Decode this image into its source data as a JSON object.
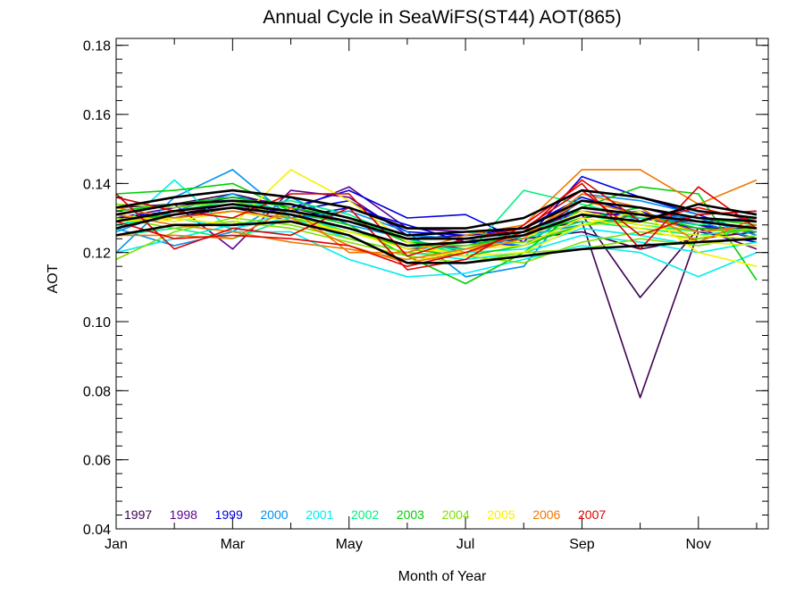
{
  "chart_data": {
    "type": "line",
    "title": "Annual Cycle in SeaWiFS(ST44) AOT(865)",
    "xlabel": "Month of Year",
    "ylabel": "AOT",
    "xlim": [
      1,
      12.2
    ],
    "ylim": [
      0.04,
      0.182
    ],
    "x_ticks": [
      {
        "value": 1,
        "label": "Jan"
      },
      {
        "value": 3,
        "label": "Mar"
      },
      {
        "value": 5,
        "label": "May"
      },
      {
        "value": 7,
        "label": "Jul"
      },
      {
        "value": 9,
        "label": "Sep"
      },
      {
        "value": 11,
        "label": "Nov"
      }
    ],
    "y_ticks": [
      {
        "value": 0.04,
        "label": "0.04"
      },
      {
        "value": 0.06,
        "label": "0.06"
      },
      {
        "value": 0.08,
        "label": "0.08"
      },
      {
        "value": 0.1,
        "label": "0.10"
      },
      {
        "value": 0.12,
        "label": "0.12"
      },
      {
        "value": 0.14,
        "label": "0.14"
      },
      {
        "value": 0.16,
        "label": "0.16"
      },
      {
        "value": 0.18,
        "label": "0.18"
      }
    ],
    "x": [
      1,
      2,
      3,
      4,
      5,
      6,
      7,
      8,
      9,
      10,
      11,
      12
    ],
    "legend_position": "bottom-left",
    "series": [
      {
        "name": "1997",
        "color": "#3d0050",
        "lines": [
          [
            0.13,
            0.131,
            0.134,
            0.131,
            0.127,
            0.121,
            0.122,
            0.124,
            0.126,
            0.121,
            0.124,
            0.126
          ],
          [
            0.133,
            0.134,
            0.137,
            0.133,
            0.129,
            0.124,
            0.125,
            0.126,
            0.129,
            0.078,
            0.126,
            0.128
          ],
          [
            0.128,
            0.13,
            0.133,
            0.129,
            0.126,
            0.122,
            0.123,
            0.125,
            0.131,
            0.107,
            0.127,
            0.127
          ]
        ]
      },
      {
        "name": "1998",
        "color": "#5a0090",
        "lines": [
          [
            0.132,
            0.134,
            0.121,
            0.138,
            0.136,
            0.125,
            0.124,
            0.126,
            0.132,
            0.13,
            0.127,
            0.121
          ],
          [
            0.129,
            0.131,
            0.133,
            0.132,
            0.139,
            0.127,
            0.126,
            0.124,
            0.135,
            0.133,
            0.129,
            0.13
          ],
          [
            0.13,
            0.133,
            0.136,
            0.134,
            0.13,
            0.123,
            0.121,
            0.125,
            0.133,
            0.131,
            0.128,
            0.124
          ]
        ]
      },
      {
        "name": "1999",
        "color": "#0000e0",
        "lines": [
          [
            0.131,
            0.134,
            0.136,
            0.133,
            0.138,
            0.13,
            0.131,
            0.123,
            0.142,
            0.136,
            0.131,
            0.125
          ],
          [
            0.128,
            0.13,
            0.132,
            0.13,
            0.133,
            0.128,
            0.123,
            0.122,
            0.13,
            0.132,
            0.126,
            0.123
          ],
          [
            0.13,
            0.132,
            0.134,
            0.132,
            0.135,
            0.126,
            0.125,
            0.127,
            0.136,
            0.131,
            0.128,
            0.126
          ]
        ]
      },
      {
        "name": "2000",
        "color": "#0090f0",
        "lines": [
          [
            0.12,
            0.136,
            0.144,
            0.13,
            0.132,
            0.126,
            0.113,
            0.116,
            0.137,
            0.135,
            0.131,
            0.132
          ],
          [
            0.127,
            0.122,
            0.126,
            0.136,
            0.128,
            0.124,
            0.12,
            0.125,
            0.128,
            0.13,
            0.129,
            0.124
          ],
          [
            0.126,
            0.132,
            0.137,
            0.131,
            0.129,
            0.125,
            0.124,
            0.122,
            0.133,
            0.131,
            0.13,
            0.125
          ]
        ]
      },
      {
        "name": "2001",
        "color": "#00eeee",
        "lines": [
          [
            0.126,
            0.141,
            0.126,
            0.126,
            0.118,
            0.113,
            0.114,
            0.118,
            0.122,
            0.12,
            0.113,
            0.12
          ],
          [
            0.12,
            0.124,
            0.128,
            0.131,
            0.126,
            0.122,
            0.12,
            0.121,
            0.127,
            0.125,
            0.122,
            0.125
          ],
          [
            0.128,
            0.13,
            0.127,
            0.13,
            0.124,
            0.12,
            0.118,
            0.12,
            0.125,
            0.123,
            0.12,
            0.123
          ]
        ]
      },
      {
        "name": "2002",
        "color": "#00f080",
        "lines": [
          [
            0.128,
            0.131,
            0.133,
            0.135,
            0.131,
            0.124,
            0.119,
            0.138,
            0.134,
            0.13,
            0.128,
            0.13
          ],
          [
            0.125,
            0.127,
            0.124,
            0.13,
            0.127,
            0.122,
            0.121,
            0.126,
            0.131,
            0.128,
            0.126,
            0.128
          ],
          [
            0.129,
            0.132,
            0.135,
            0.132,
            0.129,
            0.125,
            0.126,
            0.124,
            0.129,
            0.127,
            0.125,
            0.127
          ]
        ]
      },
      {
        "name": "2003",
        "color": "#00d000",
        "lines": [
          [
            0.137,
            0.138,
            0.14,
            0.132,
            0.128,
            0.119,
            0.111,
            0.12,
            0.133,
            0.139,
            0.137,
            0.112
          ],
          [
            0.132,
            0.134,
            0.136,
            0.133,
            0.13,
            0.123,
            0.122,
            0.125,
            0.13,
            0.133,
            0.13,
            0.128
          ],
          [
            0.129,
            0.131,
            0.133,
            0.131,
            0.127,
            0.121,
            0.119,
            0.122,
            0.128,
            0.131,
            0.127,
            0.126
          ]
        ]
      },
      {
        "name": "2004",
        "color": "#80e000",
        "lines": [
          [
            0.118,
            0.126,
            0.13,
            0.128,
            0.124,
            0.12,
            0.119,
            0.117,
            0.123,
            0.126,
            0.124,
            0.127
          ],
          [
            0.13,
            0.127,
            0.129,
            0.127,
            0.123,
            0.119,
            0.117,
            0.12,
            0.121,
            0.124,
            0.122,
            0.125
          ],
          [
            0.134,
            0.133,
            0.135,
            0.13,
            0.126,
            0.122,
            0.122,
            0.123,
            0.128,
            0.129,
            0.126,
            0.127
          ]
        ]
      },
      {
        "name": "2005",
        "color": "#f8f000",
        "lines": [
          [
            0.129,
            0.13,
            0.128,
            0.144,
            0.135,
            0.123,
            0.119,
            0.12,
            0.128,
            0.132,
            0.12,
            0.116
          ],
          [
            0.127,
            0.131,
            0.133,
            0.131,
            0.125,
            0.117,
            0.121,
            0.122,
            0.13,
            0.127,
            0.123,
            0.122
          ],
          [
            0.131,
            0.129,
            0.132,
            0.129,
            0.126,
            0.121,
            0.12,
            0.124,
            0.132,
            0.128,
            0.125,
            0.124
          ]
        ]
      },
      {
        "name": "2006",
        "color": "#f07800",
        "lines": [
          [
            0.125,
            0.125,
            0.124,
            0.133,
            0.12,
            0.12,
            0.125,
            0.128,
            0.144,
            0.144,
            0.134,
            0.141
          ],
          [
            0.133,
            0.13,
            0.132,
            0.13,
            0.122,
            0.117,
            0.12,
            0.124,
            0.137,
            0.133,
            0.123,
            0.13
          ],
          [
            0.131,
            0.128,
            0.126,
            0.123,
            0.121,
            0.118,
            0.121,
            0.125,
            0.135,
            0.131,
            0.126,
            0.128
          ]
        ]
      },
      {
        "name": "2007",
        "color": "#e00000",
        "lines": [
          [
            0.137,
            0.121,
            0.127,
            0.125,
            0.133,
            0.115,
            0.118,
            0.128,
            0.14,
            0.121,
            0.139,
            0.127
          ],
          [
            0.136,
            0.132,
            0.13,
            0.137,
            0.137,
            0.119,
            0.124,
            0.127,
            0.138,
            0.125,
            0.131,
            0.132
          ],
          [
            0.129,
            0.124,
            0.125,
            0.124,
            0.122,
            0.116,
            0.12,
            0.126,
            0.141,
            0.129,
            0.133,
            0.129
          ]
        ]
      }
    ],
    "black_lines": [
      [
        0.131,
        0.134,
        0.135,
        0.134,
        0.13,
        0.125,
        0.126,
        0.127,
        0.135,
        0.133,
        0.13,
        0.129
      ],
      [
        0.133,
        0.136,
        0.138,
        0.136,
        0.133,
        0.127,
        0.127,
        0.13,
        0.138,
        0.136,
        0.132,
        0.13
      ],
      [
        0.129,
        0.132,
        0.134,
        0.132,
        0.129,
        0.124,
        0.124,
        0.126,
        0.133,
        0.131,
        0.129,
        0.127
      ],
      [
        0.125,
        0.128,
        0.128,
        0.129,
        0.125,
        0.117,
        0.117,
        0.119,
        0.121,
        0.122,
        0.123,
        0.124
      ],
      [
        0.127,
        0.131,
        0.133,
        0.131,
        0.127,
        0.122,
        0.123,
        0.125,
        0.131,
        0.129,
        0.134,
        0.131
      ]
    ]
  }
}
